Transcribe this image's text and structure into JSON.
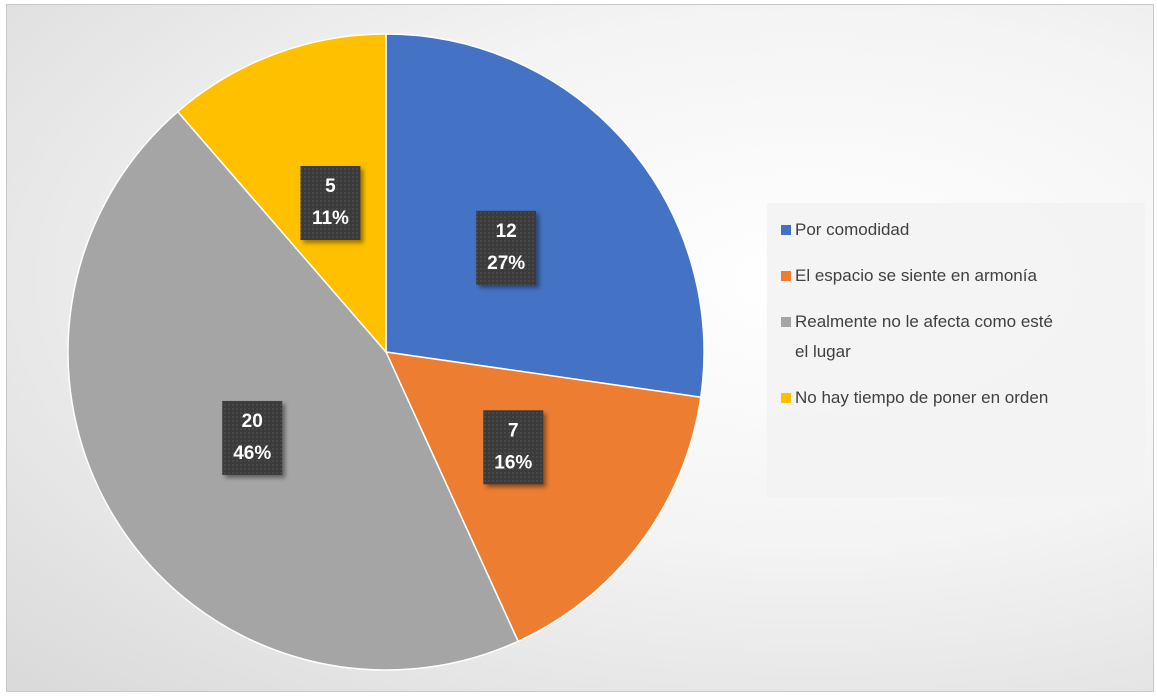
{
  "chart_data": {
    "type": "pie",
    "categories": [
      "Por comodidad",
      "El espacio se siente en armonía",
      "Realmente no le afecta como esté el lugar",
      "No hay tiempo de poner en orden"
    ],
    "values": [
      12,
      7,
      20,
      5
    ],
    "percent_labels": [
      "27%",
      "16%",
      "46%",
      "11%"
    ],
    "colors": [
      "#4472c4",
      "#ed7d31",
      "#a5a5a5",
      "#ffc000"
    ],
    "legend": "right"
  }
}
